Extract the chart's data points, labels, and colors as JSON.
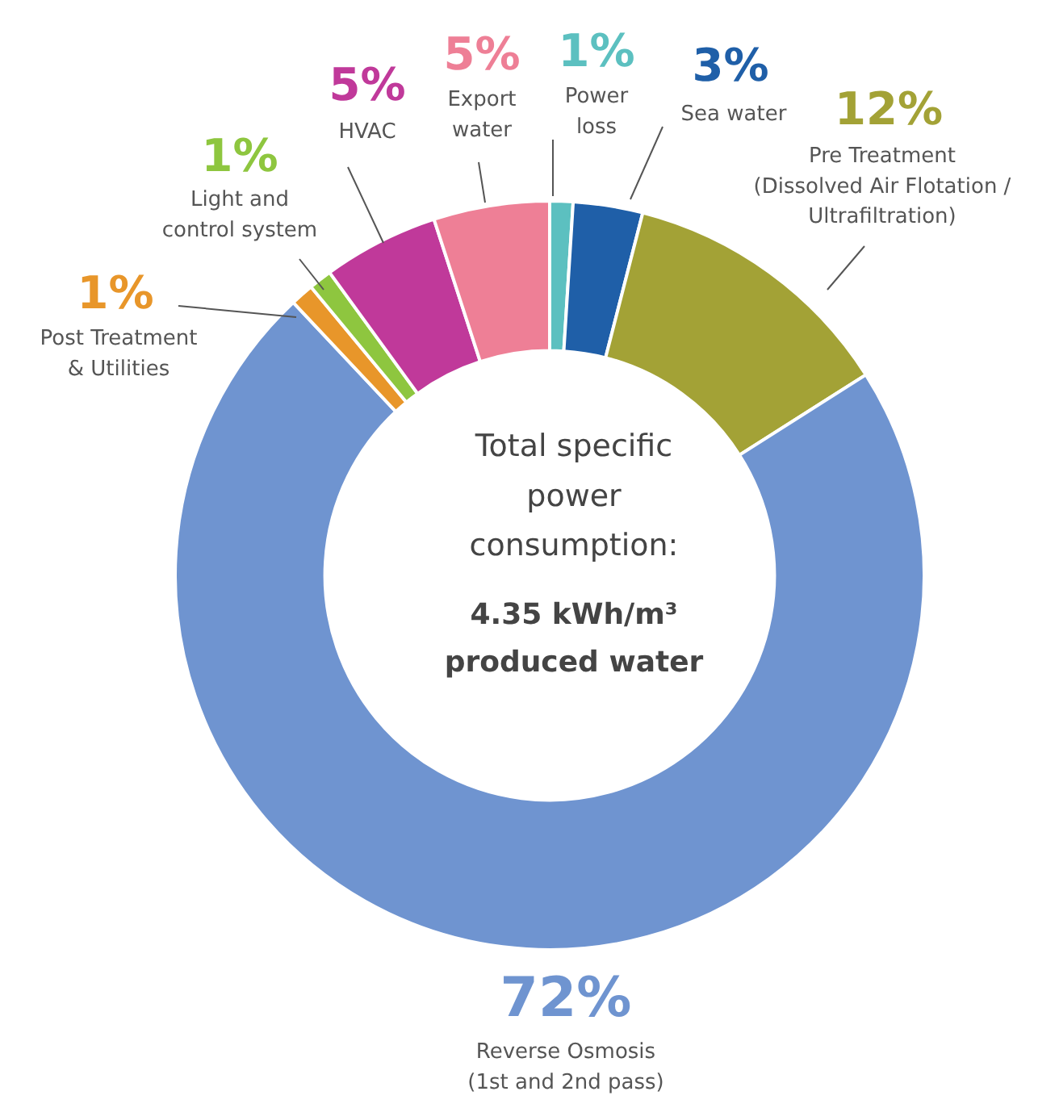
{
  "chart_data": {
    "type": "donut",
    "categories": [
      "Power\nloss",
      "Sea water",
      "Pre Treatment\n(Dissolved Air Flotation /\nUltrafiltration)",
      "Reverse Osmosis\n(1st and 2nd pass)",
      "Post Treatment\n& Utilities",
      "Light and\ncontrol system",
      "HVAC",
      "Export\nwater"
    ],
    "values": [
      1,
      3,
      12,
      72,
      1,
      1,
      5,
      5
    ],
    "value_labels": [
      "1%",
      "3%",
      "12%",
      "72%",
      "1%",
      "1%",
      "5%",
      "5%"
    ],
    "colors": [
      "#5cc0c0",
      "#1f5fa8",
      "#a3a236",
      "#6f94d0",
      "#e8962a",
      "#8ec63f",
      "#c0399a",
      "#ee7f96"
    ],
    "annotations": [
      "Total specific\npower\nconsumption:",
      "4.35 kWh/m³\nproduced water"
    ]
  }
}
